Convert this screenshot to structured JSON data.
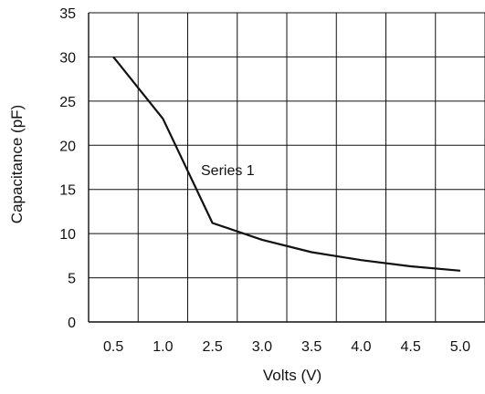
{
  "chart_data": {
    "type": "line",
    "title": "",
    "xlabel": "Volts (V)",
    "ylabel": "Capacitance (pF)",
    "categories": [
      "0.5",
      "1.0",
      "2.5",
      "3.0",
      "3.5",
      "4.0",
      "4.5",
      "5.0"
    ],
    "ylim": [
      0,
      35
    ],
    "yticks": [
      0,
      5,
      10,
      15,
      20,
      25,
      30,
      35
    ],
    "grid": true,
    "legend": "none",
    "annotation": "Series 1",
    "series": [
      {
        "name": "Series 1",
        "x": [
          0.5,
          1.0,
          1.5,
          2.0,
          2.5,
          3.0,
          3.5,
          4.0,
          4.5,
          5.0
        ],
        "values": [
          30,
          23,
          11.2,
          9.3,
          7.9,
          7.0,
          6.3,
          5.8,
          5.5,
          5.3
        ],
        "values_note_omitted": false
      }
    ],
    "colors": {
      "line": "#111111",
      "grid": "#111111",
      "background": "#ffffff"
    }
  }
}
